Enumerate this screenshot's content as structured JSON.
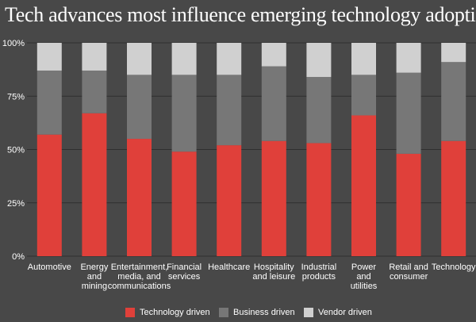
{
  "chart_data": {
    "type": "bar",
    "stacked": true,
    "title": "Tech advances most influence emerging technology adoption",
    "categories": [
      [
        "Automotive"
      ],
      [
        "Energy",
        "and",
        "mining"
      ],
      [
        "Entertainment,",
        "media, and",
        "communications"
      ],
      [
        "Financial",
        "services"
      ],
      [
        "Healthcare"
      ],
      [
        "Hospitality",
        "and leisure"
      ],
      [
        "Industrial",
        "products"
      ],
      [
        "Power",
        "and",
        "utilities"
      ],
      [
        "Retail and",
        "consumer"
      ],
      [
        "Technology"
      ]
    ],
    "series": [
      {
        "name": "Technology driven",
        "color": "#e0403a",
        "values": [
          57,
          67,
          55,
          49,
          52,
          54,
          53,
          66,
          48,
          54
        ]
      },
      {
        "name": "Business driven",
        "color": "#777777",
        "values": [
          30,
          20,
          30,
          36,
          33,
          35,
          31,
          19,
          38,
          37
        ]
      },
      {
        "name": "Vendor driven",
        "color": "#d0d0d0",
        "values": [
          13,
          13,
          15,
          15,
          15,
          11,
          16,
          15,
          14,
          9
        ]
      }
    ],
    "yticks": [
      "0%",
      "25%",
      "50%",
      "75%",
      "100%"
    ],
    "ylim": [
      0,
      100
    ],
    "grid": true,
    "legend_position": "bottom"
  }
}
